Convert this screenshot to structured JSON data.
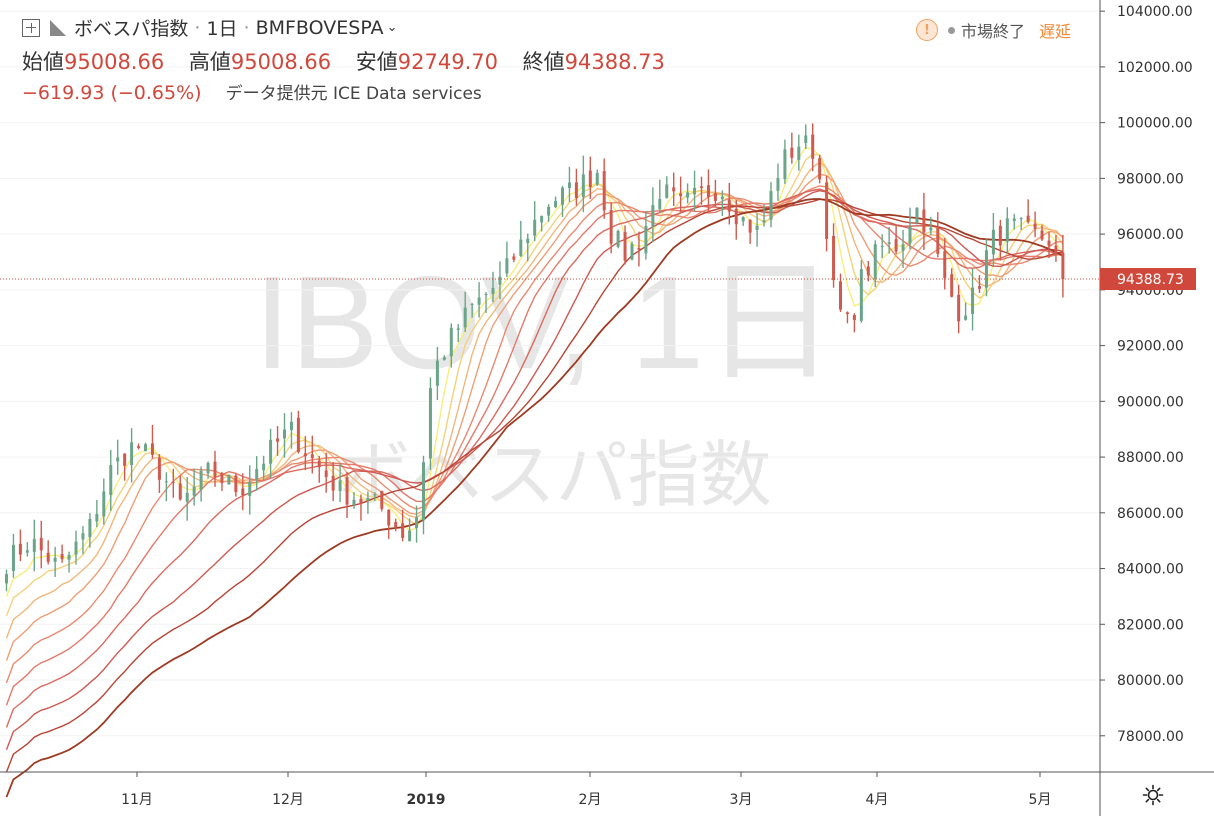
{
  "header": {
    "symbol_name": "ボベスパ指数",
    "separator": "·",
    "interval": "1日",
    "ticker": "BMFBOVESPA",
    "chevron": "⌄",
    "ohlc": [
      {
        "label": "始値",
        "value": "95008.66"
      },
      {
        "label": "高値",
        "value": "95008.66"
      },
      {
        "label": "安値",
        "value": "92749.70"
      },
      {
        "label": "終値",
        "value": "94388.73"
      }
    ],
    "change": "−619.93 (−0.65%)",
    "data_source": "データ提供元 ICE Data services"
  },
  "status": {
    "warning_icon": "!",
    "market_status": "市場終了",
    "delay_label": "遅延"
  },
  "watermark": {
    "symbol": "IBOV, 1日",
    "name": "ボベスパ指数"
  },
  "colors": {
    "up": "#6aa58a",
    "down": "#d05a4e",
    "price_line": "#d0483b",
    "ribbon": [
      "#f8ee7a",
      "#f5d27a",
      "#f2b77a",
      "#ef9e76",
      "#ea8a70",
      "#e4796a",
      "#db6a60",
      "#cf5a52",
      "#b84434",
      "#9e3a22"
    ]
  },
  "chart_data": {
    "type": "candlestick",
    "last_price": "94388.73",
    "y_axis": {
      "range": [
        76700,
        104400
      ],
      "ticks": [
        "104000.00",
        "102000.00",
        "100000.00",
        "98000.00",
        "96000.00",
        "94000.00",
        "92000.00",
        "90000.00",
        "88000.00",
        "86000.00",
        "84000.00",
        "82000.00",
        "80000.00",
        "78000.00"
      ]
    },
    "x_axis": {
      "labels": [
        "11月",
        "12月",
        "2019",
        "2月",
        "3月",
        "4月",
        "5月"
      ]
    }
  }
}
